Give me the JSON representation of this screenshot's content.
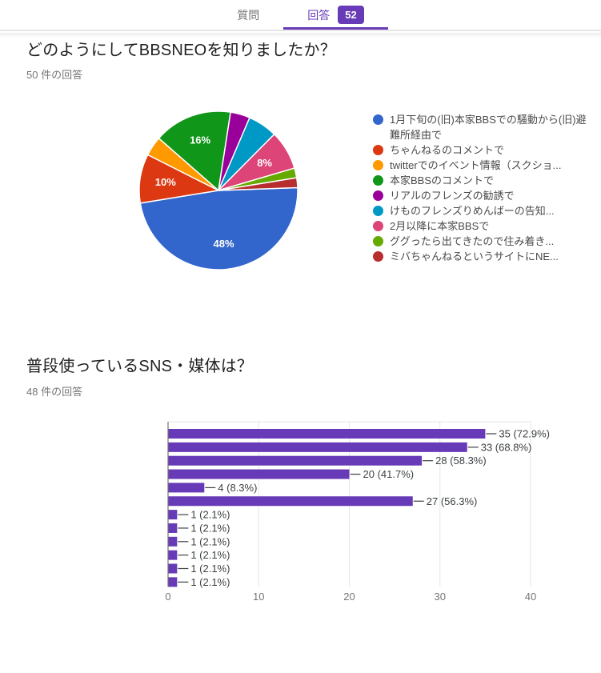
{
  "header": {
    "tabs": [
      {
        "id": "questions",
        "label": "質問",
        "active": false
      },
      {
        "id": "answers",
        "label": "回答",
        "active": true,
        "badge": "52"
      }
    ]
  },
  "questions": [
    {
      "title": "どのようにしてBBSNEOを知りましたか？",
      "response_count": "50 件の回答"
    },
    {
      "title": "普段使っているSNS・媒体は？",
      "response_count": "48 件の回答"
    }
  ],
  "chart_data": [
    {
      "type": "pie",
      "title": "どのようにしてBBSNEOを知りましたか？",
      "total_responses": 50,
      "legend_position": "right",
      "label_threshold_pct": 8,
      "start_angle_deg_clockwise_from_12": 88,
      "slices": [
        {
          "label": "1月下旬の(旧)本家BBSでの騒動から(旧)避難所経由で",
          "value": 24,
          "pct": 48,
          "pct_label": "48%",
          "color": "#3366CC"
        },
        {
          "label": "ちゃんねるのコメントで",
          "value": 5,
          "pct": 10,
          "pct_label": "10%",
          "color": "#DC3912"
        },
        {
          "label": "twitterでのイベント情報（スクショ...",
          "value": 2,
          "pct": 4,
          "pct_label": "4%",
          "color": "#FF9900"
        },
        {
          "label": "本家BBSのコメントで",
          "value": 8,
          "pct": 16,
          "pct_label": "16%",
          "color": "#109618"
        },
        {
          "label": "リアルのフレンズの勧誘で",
          "value": 2,
          "pct": 4,
          "pct_label": "4%",
          "color": "#990099"
        },
        {
          "label": "けものフレンズりめんばーの告知...",
          "value": 3,
          "pct": 6,
          "pct_label": "6%",
          "color": "#0099C6"
        },
        {
          "label": "2月以降に本家BBSで",
          "value": 4,
          "pct": 8,
          "pct_label": "8%",
          "color": "#DD4477"
        },
        {
          "label": "ググったら出てきたので住み着き...",
          "value": 1,
          "pct": 2,
          "pct_label": "2%",
          "color": "#66AA00"
        },
        {
          "label": "ミバちゃんねるというサイトにNE...",
          "value": 1,
          "pct": 2,
          "pct_label": "2%",
          "color": "#B82E2E"
        }
      ]
    },
    {
      "type": "bar",
      "orientation": "horizontal",
      "title": "普段使っているSNS・媒体は？",
      "total_responses": 48,
      "values": [
        35,
        33,
        28,
        20,
        4,
        27,
        1,
        1,
        1,
        1,
        1,
        1
      ],
      "value_labels": [
        "35 (72.9%)",
        "33 (68.8%)",
        "28 (58.3%)",
        "20 (41.7%)",
        "4 (8.3%)",
        "27 (56.3%)",
        "1 (2.1%)",
        "1 (2.1%)",
        "1 (2.1%)",
        "1 (2.1%)",
        "1 (2.1%)",
        "1 (2.1%)"
      ],
      "x_ticks": [
        "0",
        "10",
        "20",
        "30",
        "40"
      ],
      "xlim": [
        0,
        40
      ],
      "grid": true,
      "bar_color": "#673AB7"
    }
  ],
  "colors": {
    "accent": "#673ab7",
    "tab_inactive": "#757575",
    "divider": "#e6e6e6",
    "title_text": "#212121",
    "subtitle_text": "#757575",
    "axis_line": "#757575",
    "gridline": "#e6e6e6",
    "annotation_text": "#3c4043"
  }
}
